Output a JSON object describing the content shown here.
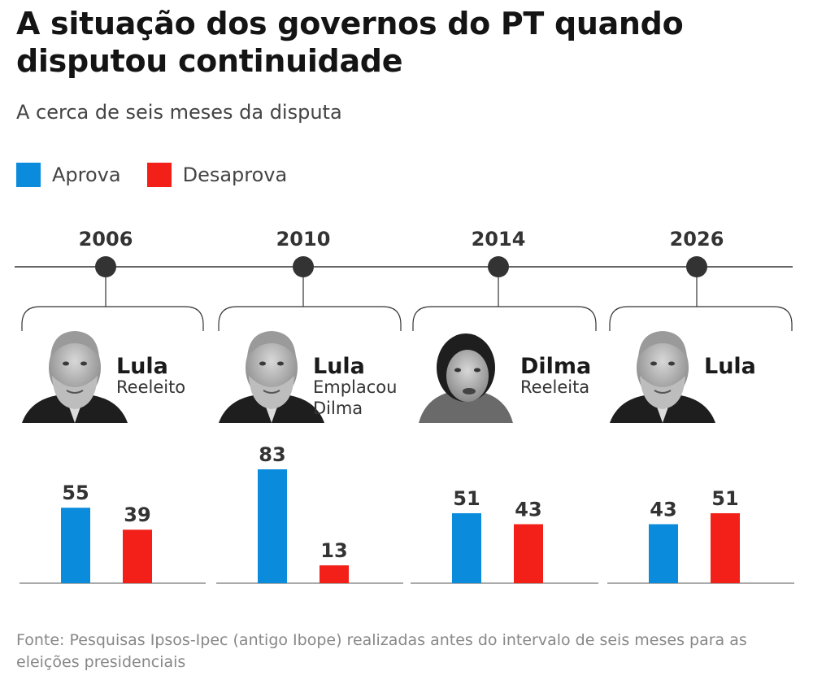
{
  "title": "A situação dos governos do PT quando disputou continuidade",
  "subtitle": "A cerca de seis meses da disputa",
  "legend": {
    "approve": "Aprova",
    "disapprove": "Desaprova"
  },
  "colors": {
    "approve": "#0a8bdc",
    "disapprove": "#f22018",
    "timeline": "#333333"
  },
  "source": "Fonte: Pesquisas Ipsos-Ipec (antigo Ibope) realizadas antes do intervalo de seis meses para as eleições presidenciais",
  "chart_data": {
    "type": "bar",
    "title": "A situação dos governos do PT quando disputou continuidade",
    "categories": [
      "2006",
      "2010",
      "2014",
      "2026"
    ],
    "people": [
      {
        "name": "Lula",
        "desc": [
          "Reeleito"
        ]
      },
      {
        "name": "Lula",
        "desc": [
          "Emplacou",
          "Dilma"
        ]
      },
      {
        "name": "Dilma",
        "desc": [
          "Reeleita"
        ]
      },
      {
        "name": "Lula",
        "desc": []
      }
    ],
    "series": [
      {
        "name": "Aprova",
        "values": [
          55,
          83,
          51,
          43
        ]
      },
      {
        "name": "Desaprova",
        "values": [
          39,
          13,
          43,
          51
        ]
      }
    ],
    "ylim": [
      0,
      83
    ],
    "xlabel": "",
    "ylabel": ""
  }
}
